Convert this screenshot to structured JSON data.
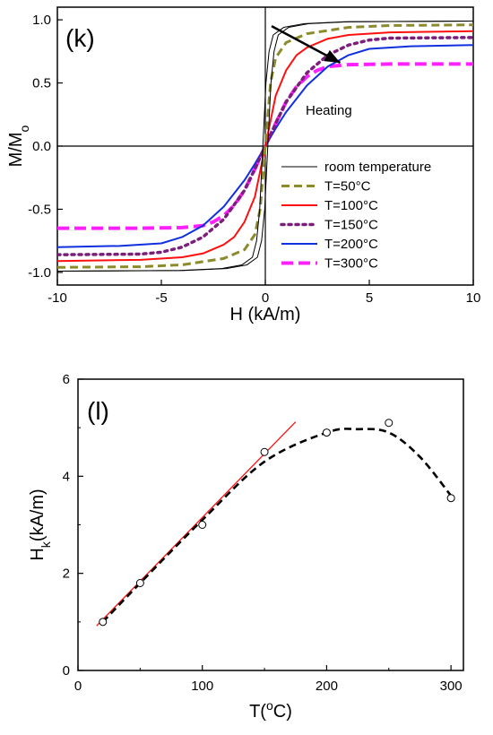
{
  "chart_data": [
    {
      "type": "line",
      "panel_label": "(k)",
      "xlabel": "H (kA/m)",
      "ylabel": {
        "main": "M/M",
        "sub": "o"
      },
      "xlim": [
        -10,
        10
      ],
      "ylim": [
        -1.1,
        1.1
      ],
      "xticks": [
        -10,
        -5,
        0,
        5,
        10
      ],
      "xtick_labels": [
        "-10",
        "-5",
        "0",
        "5",
        "10"
      ],
      "yticks": [
        -1.0,
        -0.5,
        0.0,
        0.5,
        1.0
      ],
      "ytick_labels": [
        "-1.0",
        "-0.5",
        "0.0",
        "0.5",
        "1.0"
      ],
      "zero_lines": true,
      "legend_position": "bottom-right",
      "annotation": {
        "text": "Heating",
        "arrow_from": [
          0.3,
          0.95
        ],
        "arrow_to": [
          3.6,
          0.66
        ]
      },
      "series": [
        {
          "name": "room temperature",
          "color": "#000000",
          "dash": "solid",
          "width": 1,
          "double": true,
          "x": [
            -10,
            -4,
            -2,
            -1,
            -0.5,
            -0.3,
            -0.15,
            0,
            0.15,
            0.3,
            0.5,
            1,
            2,
            4,
            10
          ],
          "y": [
            -0.99,
            -0.985,
            -0.97,
            -0.94,
            -0.88,
            -0.75,
            -0.5,
            0,
            0.5,
            0.75,
            0.88,
            0.94,
            0.97,
            0.985,
            0.99
          ]
        },
        {
          "name": "T=50°C",
          "color": "#8b8b2e",
          "dash": "9,5",
          "width": 3,
          "double": false,
          "x": [
            -10,
            -6,
            -4,
            -2,
            -1,
            -0.5,
            -0.25,
            0,
            0.25,
            0.5,
            1,
            2,
            4,
            6,
            10
          ],
          "y": [
            -0.96,
            -0.955,
            -0.94,
            -0.89,
            -0.82,
            -0.7,
            -0.5,
            0,
            0.5,
            0.7,
            0.82,
            0.89,
            0.94,
            0.955,
            0.96
          ]
        },
        {
          "name": "T=100°C",
          "color": "#ff1010",
          "dash": "solid",
          "width": 2,
          "double": false,
          "x": [
            -10,
            -6,
            -4,
            -3,
            -2,
            -1.5,
            -1,
            -0.5,
            0,
            0.5,
            1,
            1.5,
            2,
            3,
            4,
            6,
            10
          ],
          "y": [
            -0.91,
            -0.9,
            -0.88,
            -0.85,
            -0.78,
            -0.72,
            -0.6,
            -0.4,
            0,
            0.4,
            0.6,
            0.72,
            0.78,
            0.85,
            0.88,
            0.9,
            0.91
          ]
        },
        {
          "name": "T=150°C",
          "color": "#7b1f7b",
          "dash": "3,5",
          "width": 3.5,
          "double": false,
          "x": [
            -10,
            -6,
            -5,
            -4,
            -3,
            -2,
            -1,
            -0.5,
            0,
            0.5,
            1,
            2,
            3,
            4,
            5,
            6,
            10
          ],
          "y": [
            -0.86,
            -0.855,
            -0.84,
            -0.8,
            -0.72,
            -0.58,
            -0.35,
            -0.18,
            0,
            0.18,
            0.35,
            0.58,
            0.72,
            0.8,
            0.84,
            0.855,
            0.86
          ]
        },
        {
          "name": "T=200°C",
          "color": "#1030e0",
          "dash": "solid",
          "width": 2,
          "double": false,
          "x": [
            -10,
            -7,
            -5,
            -4,
            -3,
            -2,
            -1,
            -0.5,
            0,
            0.5,
            1,
            2,
            3,
            4,
            5,
            7,
            10
          ],
          "y": [
            -0.8,
            -0.79,
            -0.77,
            -0.72,
            -0.63,
            -0.48,
            -0.27,
            -0.14,
            0,
            0.14,
            0.27,
            0.48,
            0.63,
            0.72,
            0.77,
            0.79,
            0.8
          ]
        },
        {
          "name": "T=300°C",
          "color": "#ff20ff",
          "dash": "13,6",
          "width": 4,
          "double": false,
          "x": [
            -10,
            -6,
            -4,
            -3,
            -2.5,
            -2,
            -1.5,
            -1,
            -0.5,
            0,
            0.5,
            1,
            1.5,
            2,
            2.5,
            3,
            4,
            6,
            10
          ],
          "y": [
            -0.65,
            -0.65,
            -0.645,
            -0.63,
            -0.6,
            -0.55,
            -0.47,
            -0.35,
            -0.18,
            0,
            0.18,
            0.35,
            0.47,
            0.55,
            0.6,
            0.63,
            0.645,
            0.65,
            0.65
          ]
        }
      ]
    },
    {
      "type": "scatter",
      "panel_label": "(l)",
      "xlabel": {
        "main": "T(",
        "sup": "o",
        "rest": "C)"
      },
      "ylabel": {
        "main": "H",
        "sub": "k",
        "rest": "(kA/m)"
      },
      "xlim": [
        0,
        310
      ],
      "ylim": [
        0,
        6
      ],
      "xticks": [
        0,
        100,
        200,
        300
      ],
      "xtick_labels": [
        "0",
        "100",
        "200",
        "300"
      ],
      "yticks": [
        0,
        2,
        4,
        6
      ],
      "ytick_labels": [
        "0",
        "2",
        "4",
        "6"
      ],
      "points": {
        "x": [
          20,
          50,
          100,
          150,
          200,
          250,
          300
        ],
        "y": [
          1.0,
          1.8,
          3.0,
          4.5,
          4.9,
          5.1,
          3.55
        ]
      },
      "linear_fit": {
        "color": "#ff1010",
        "x": [
          15,
          175
        ],
        "y": [
          0.92,
          5.12
        ]
      },
      "trend_curve": {
        "color": "#000000",
        "dash": "8,5",
        "x": [
          20,
          50,
          100,
          150,
          200,
          225,
          250,
          275,
          300
        ],
        "y": [
          1.0,
          1.8,
          3.1,
          4.3,
          4.9,
          4.97,
          4.9,
          4.4,
          3.6
        ]
      }
    }
  ]
}
